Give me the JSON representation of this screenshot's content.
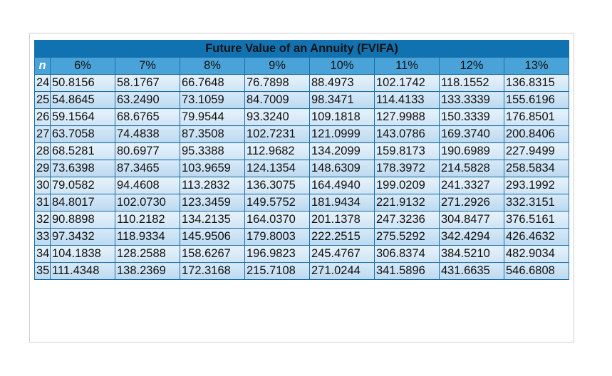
{
  "title": "Future Value of an Annuity (FVIFA)",
  "n_label": "n",
  "rates": [
    "6%",
    "7%",
    "8%",
    "9%",
    "10%",
    "11%",
    "12%",
    "13%"
  ],
  "rows": [
    {
      "n": "24",
      "values": [
        "50.8156",
        "58.1767",
        "66.7648",
        "76.7898",
        "88.4973",
        "102.1742",
        "118.1552",
        "136.8315"
      ]
    },
    {
      "n": "25",
      "values": [
        "54.8645",
        "63.2490",
        "73.1059",
        "84.7009",
        "98.3471",
        "114.4133",
        "133.3339",
        "155.6196"
      ]
    },
    {
      "n": "26",
      "values": [
        "59.1564",
        "68.6765",
        "79.9544",
        "93.3240",
        "109.1818",
        "127.9988",
        "150.3339",
        "176.8501"
      ]
    },
    {
      "n": "27",
      "values": [
        "63.7058",
        "74.4838",
        "87.3508",
        "102.7231",
        "121.0999",
        "143.0786",
        "169.3740",
        "200.8406"
      ]
    },
    {
      "n": "28",
      "values": [
        "68.5281",
        "80.6977",
        "95.3388",
        "112.9682",
        "134.2099",
        "159.8173",
        "190.6989",
        "227.9499"
      ]
    },
    {
      "n": "29",
      "values": [
        "73.6398",
        "87.3465",
        "103.9659",
        "124.1354",
        "148.6309",
        "178.3972",
        "214.5828",
        "258.5834"
      ]
    },
    {
      "n": "30",
      "values": [
        "79.0582",
        "94.4608",
        "113.2832",
        "136.3075",
        "164.4940",
        "199.0209",
        "241.3327",
        "293.1992"
      ]
    },
    {
      "n": "31",
      "values": [
        "84.8017",
        "102.0730",
        "123.3459",
        "149.5752",
        "181.9434",
        "221.9132",
        "271.2926",
        "332.3151"
      ]
    },
    {
      "n": "32",
      "values": [
        "90.8898",
        "110.2182",
        "134.2135",
        "164.0370",
        "201.1378",
        "247.3236",
        "304.8477",
        "376.5161"
      ]
    },
    {
      "n": "33",
      "values": [
        "97.3432",
        "118.9334",
        "145.9506",
        "179.8003",
        "222.2515",
        "275.5292",
        "342.4294",
        "426.4632"
      ]
    },
    {
      "n": "34",
      "values": [
        "104.1838",
        "128.2588",
        "158.6267",
        "196.9823",
        "245.4767",
        "306.8374",
        "384.5210",
        "482.9034"
      ]
    },
    {
      "n": "35",
      "values": [
        "111.4348",
        "138.2369",
        "172.3168",
        "215.7108",
        "271.0244",
        "341.5896",
        "431.6635",
        "546.6808"
      ]
    }
  ]
}
